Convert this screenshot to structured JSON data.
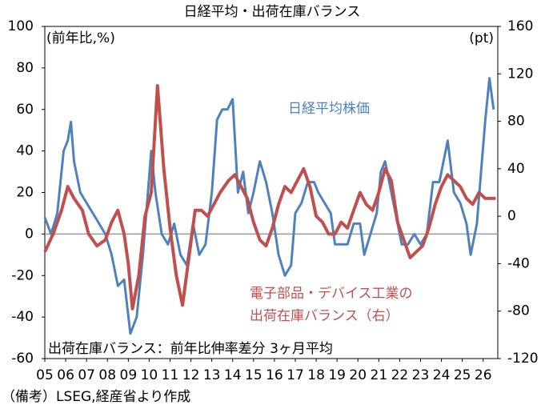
{
  "chart_data": {
    "type": "line",
    "title": "日経平均・出荷在庫バランス",
    "y_label": "(前年比,%)",
    "y2_label": "(pt)",
    "note": "出荷在庫バランス：前年比伸率差分 3ヶ月平均",
    "source": "（備考）LSEG,経産省より作成",
    "xlim": [
      2005,
      2026.7
    ],
    "xticks": [
      {
        "value": 2005,
        "label": "05"
      },
      {
        "value": 2006,
        "label": "06"
      },
      {
        "value": 2007,
        "label": "07"
      },
      {
        "value": 2008,
        "label": "08"
      },
      {
        "value": 2009,
        "label": "09"
      },
      {
        "value": 2010,
        "label": "10"
      },
      {
        "value": 2011,
        "label": "11"
      },
      {
        "value": 2012,
        "label": "12"
      },
      {
        "value": 2013,
        "label": "13"
      },
      {
        "value": 2014,
        "label": "14"
      },
      {
        "value": 2015,
        "label": "15"
      },
      {
        "value": 2016,
        "label": "16"
      },
      {
        "value": 2017,
        "label": "17"
      },
      {
        "value": 2018,
        "label": "18"
      },
      {
        "value": 2019,
        "label": "19"
      },
      {
        "value": 2020,
        "label": "20"
      },
      {
        "value": 2021,
        "label": "21"
      },
      {
        "value": 2022,
        "label": "22"
      },
      {
        "value": 2023,
        "label": "23"
      },
      {
        "value": 2024,
        "label": "24"
      },
      {
        "value": 2025,
        "label": "25"
      },
      {
        "value": 2026,
        "label": "26"
      }
    ],
    "ylim": [
      -60,
      100
    ],
    "yticks": [
      100,
      80,
      60,
      40,
      20,
      0,
      -20,
      -40,
      -60
    ],
    "y2lim": [
      -120,
      160
    ],
    "y2ticks": [
      160,
      120,
      80,
      40,
      0,
      -40,
      -80,
      -120
    ],
    "series": [
      {
        "name": "日経平均株価",
        "color": "#4f81bd",
        "axis": "y",
        "x": [
          2005.0,
          2005.3,
          2005.6,
          2005.9,
          2006.1,
          2006.25,
          2006.4,
          2006.7,
          2007.0,
          2007.3,
          2007.6,
          2007.9,
          2008.2,
          2008.5,
          2008.8,
          2009.1,
          2009.4,
          2009.7,
          2009.9,
          2010.1,
          2010.3,
          2010.6,
          2010.9,
          2011.2,
          2011.5,
          2011.8,
          2012.1,
          2012.4,
          2012.7,
          2013.0,
          2013.25,
          2013.5,
          2013.75,
          2014.0,
          2014.25,
          2014.5,
          2014.75,
          2015.0,
          2015.3,
          2015.6,
          2015.9,
          2016.2,
          2016.5,
          2016.8,
          2017.0,
          2017.3,
          2017.6,
          2017.9,
          2018.1,
          2018.4,
          2018.7,
          2018.9,
          2019.2,
          2019.5,
          2019.8,
          2020.1,
          2020.3,
          2020.6,
          2020.9,
          2021.1,
          2021.3,
          2021.6,
          2021.9,
          2022.1,
          2022.4,
          2022.7,
          2023.0,
          2023.3,
          2023.6,
          2023.9,
          2024.1,
          2024.3,
          2024.6,
          2024.9,
          2025.2,
          2025.4,
          2025.7,
          2025.9,
          2026.1,
          2026.3,
          2026.5
        ],
        "values": [
          8,
          0,
          10,
          40,
          45,
          54,
          35,
          20,
          15,
          10,
          5,
          0,
          -10,
          -25,
          -22,
          -48,
          -40,
          -10,
          15,
          40,
          20,
          0,
          -5,
          5,
          -10,
          -15,
          5,
          -10,
          -5,
          20,
          55,
          60,
          60,
          65,
          20,
          30,
          10,
          20,
          35,
          25,
          10,
          -10,
          -20,
          -15,
          10,
          15,
          25,
          25,
          20,
          15,
          10,
          -5,
          -5,
          -5,
          5,
          5,
          -10,
          0,
          10,
          30,
          35,
          20,
          5,
          -5,
          -5,
          0,
          -5,
          0,
          25,
          25,
          35,
          45,
          20,
          15,
          5,
          -10,
          5,
          30,
          55,
          75,
          60
        ]
      },
      {
        "name": [
          "電子部品・デバイス工業の",
          "出荷在庫バランス（右）"
        ],
        "color": "#c0504d",
        "axis": "y2",
        "x": [
          2005.0,
          2005.4,
          2005.8,
          2006.1,
          2006.4,
          2006.8,
          2007.1,
          2007.5,
          2007.9,
          2008.2,
          2008.5,
          2008.8,
          2009.0,
          2009.2,
          2009.5,
          2009.8,
          2010.1,
          2010.4,
          2010.7,
          2011.0,
          2011.3,
          2011.6,
          2011.9,
          2012.2,
          2012.5,
          2012.8,
          2013.1,
          2013.4,
          2013.8,
          2014.1,
          2014.4,
          2014.7,
          2015.0,
          2015.3,
          2015.6,
          2015.9,
          2016.2,
          2016.5,
          2016.8,
          2017.1,
          2017.4,
          2017.7,
          2018.0,
          2018.3,
          2018.6,
          2018.9,
          2019.2,
          2019.5,
          2019.8,
          2020.1,
          2020.4,
          2020.7,
          2021.0,
          2021.3,
          2021.6,
          2021.9,
          2022.2,
          2022.5,
          2022.8,
          2023.1,
          2023.4,
          2023.7,
          2024.0,
          2024.3,
          2024.6,
          2024.9,
          2025.2,
          2025.5,
          2025.8,
          2026.1,
          2026.4,
          2026.6
        ],
        "values": [
          -30,
          -15,
          5,
          25,
          15,
          5,
          -15,
          -25,
          -20,
          -5,
          5,
          -15,
          -40,
          -78,
          -50,
          0,
          20,
          110,
          40,
          -10,
          -50,
          -75,
          -35,
          5,
          5,
          0,
          10,
          20,
          30,
          35,
          25,
          15,
          -5,
          -20,
          -25,
          -10,
          10,
          25,
          20,
          30,
          40,
          25,
          0,
          -5,
          -15,
          -15,
          -5,
          -10,
          5,
          20,
          10,
          5,
          20,
          40,
          30,
          -5,
          -20,
          -35,
          -30,
          -25,
          -10,
          10,
          25,
          35,
          30,
          25,
          15,
          10,
          20,
          15,
          15,
          15
        ]
      }
    ]
  }
}
